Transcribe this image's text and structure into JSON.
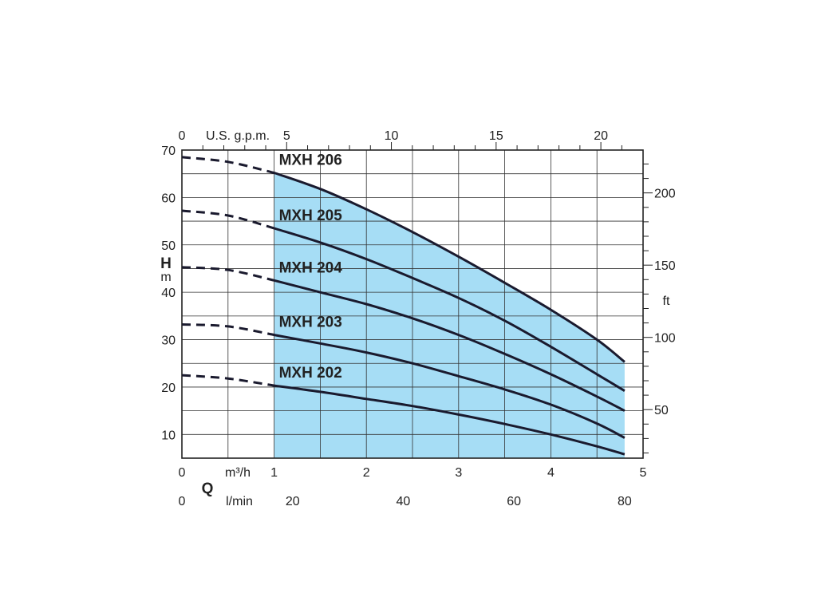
{
  "chart_data": {
    "type": "line",
    "xlabel": "Q",
    "ylabel": "H",
    "x_unit": "m³/h",
    "y_unit": "m",
    "xlim": [
      0,
      5
    ],
    "ylim": [
      5,
      70
    ],
    "x_ticks": [
      0,
      1,
      2,
      3,
      4,
      5
    ],
    "y_ticks": [
      10,
      20,
      30,
      40,
      50,
      60,
      70
    ],
    "grid": true,
    "secondary_x_top": {
      "unit": "U.S. g.p.m.",
      "tick_labels": [
        "0",
        "5",
        "10",
        "15",
        "20"
      ],
      "tick_values": [
        0,
        5,
        10,
        15,
        20
      ]
    },
    "secondary_x_bottom": {
      "unit": "l/min",
      "tick_labels": [
        "0",
        "20",
        "40",
        "60",
        "80"
      ],
      "tick_values": [
        0,
        20,
        40,
        60,
        80
      ]
    },
    "secondary_y_right": {
      "unit": "ft",
      "tick_labels": [
        "50",
        "100",
        "150",
        "200"
      ],
      "tick_values": [
        50,
        100,
        150,
        200
      ]
    },
    "operating_range": [
      1,
      4.8
    ],
    "operating_color": "#a6ddf5",
    "line_color": "#1a1a2e",
    "series": [
      {
        "name": "MXH 206",
        "dashed": {
          "x": [
            0,
            0.5,
            1.0
          ],
          "y": [
            68.5,
            67.5,
            65.2
          ]
        },
        "solid": {
          "x": [
            1.0,
            1.5,
            2.0,
            2.5,
            3.0,
            3.5,
            4.0,
            4.5,
            4.8
          ],
          "y": [
            65.2,
            61.8,
            57.5,
            52.7,
            47.5,
            42.0,
            36.3,
            30.0,
            25.3
          ]
        }
      },
      {
        "name": "MXH 205",
        "dashed": {
          "x": [
            0,
            0.5,
            1.0
          ],
          "y": [
            57.2,
            56.2,
            53.5
          ]
        },
        "solid": {
          "x": [
            1.0,
            1.5,
            2.0,
            2.5,
            3.0,
            3.5,
            4.0,
            4.5,
            4.8
          ],
          "y": [
            53.5,
            50.5,
            47.0,
            43.0,
            38.8,
            34.0,
            28.5,
            22.7,
            19.2
          ]
        }
      },
      {
        "name": "MXH 204",
        "dashed": {
          "x": [
            0,
            0.5,
            1.0
          ],
          "y": [
            45.3,
            44.7,
            42.5
          ]
        },
        "solid": {
          "x": [
            1.0,
            1.5,
            2.0,
            2.5,
            3.0,
            3.5,
            4.0,
            4.5,
            4.8
          ],
          "y": [
            42.5,
            40.0,
            37.5,
            34.5,
            31.0,
            27.0,
            22.7,
            18.0,
            15.0
          ]
        }
      },
      {
        "name": "MXH 203",
        "dashed": {
          "x": [
            0,
            0.5,
            1.0
          ],
          "y": [
            33.2,
            32.8,
            31.0
          ]
        },
        "solid": {
          "x": [
            1.0,
            1.5,
            2.0,
            2.5,
            3.0,
            3.5,
            4.0,
            4.5,
            4.8
          ],
          "y": [
            31.0,
            29.2,
            27.3,
            25.0,
            22.3,
            19.5,
            16.3,
            12.3,
            9.3
          ]
        }
      },
      {
        "name": "MXH 202",
        "dashed": {
          "x": [
            0,
            0.5,
            1.0
          ],
          "y": [
            22.5,
            21.8,
            20.3
          ]
        },
        "solid": {
          "x": [
            1.0,
            1.5,
            2.0,
            2.5,
            3.0,
            3.5,
            4.0,
            4.5,
            4.8
          ],
          "y": [
            20.3,
            19.0,
            17.5,
            16.0,
            14.2,
            12.2,
            10.0,
            7.5,
            5.8
          ]
        }
      }
    ]
  }
}
